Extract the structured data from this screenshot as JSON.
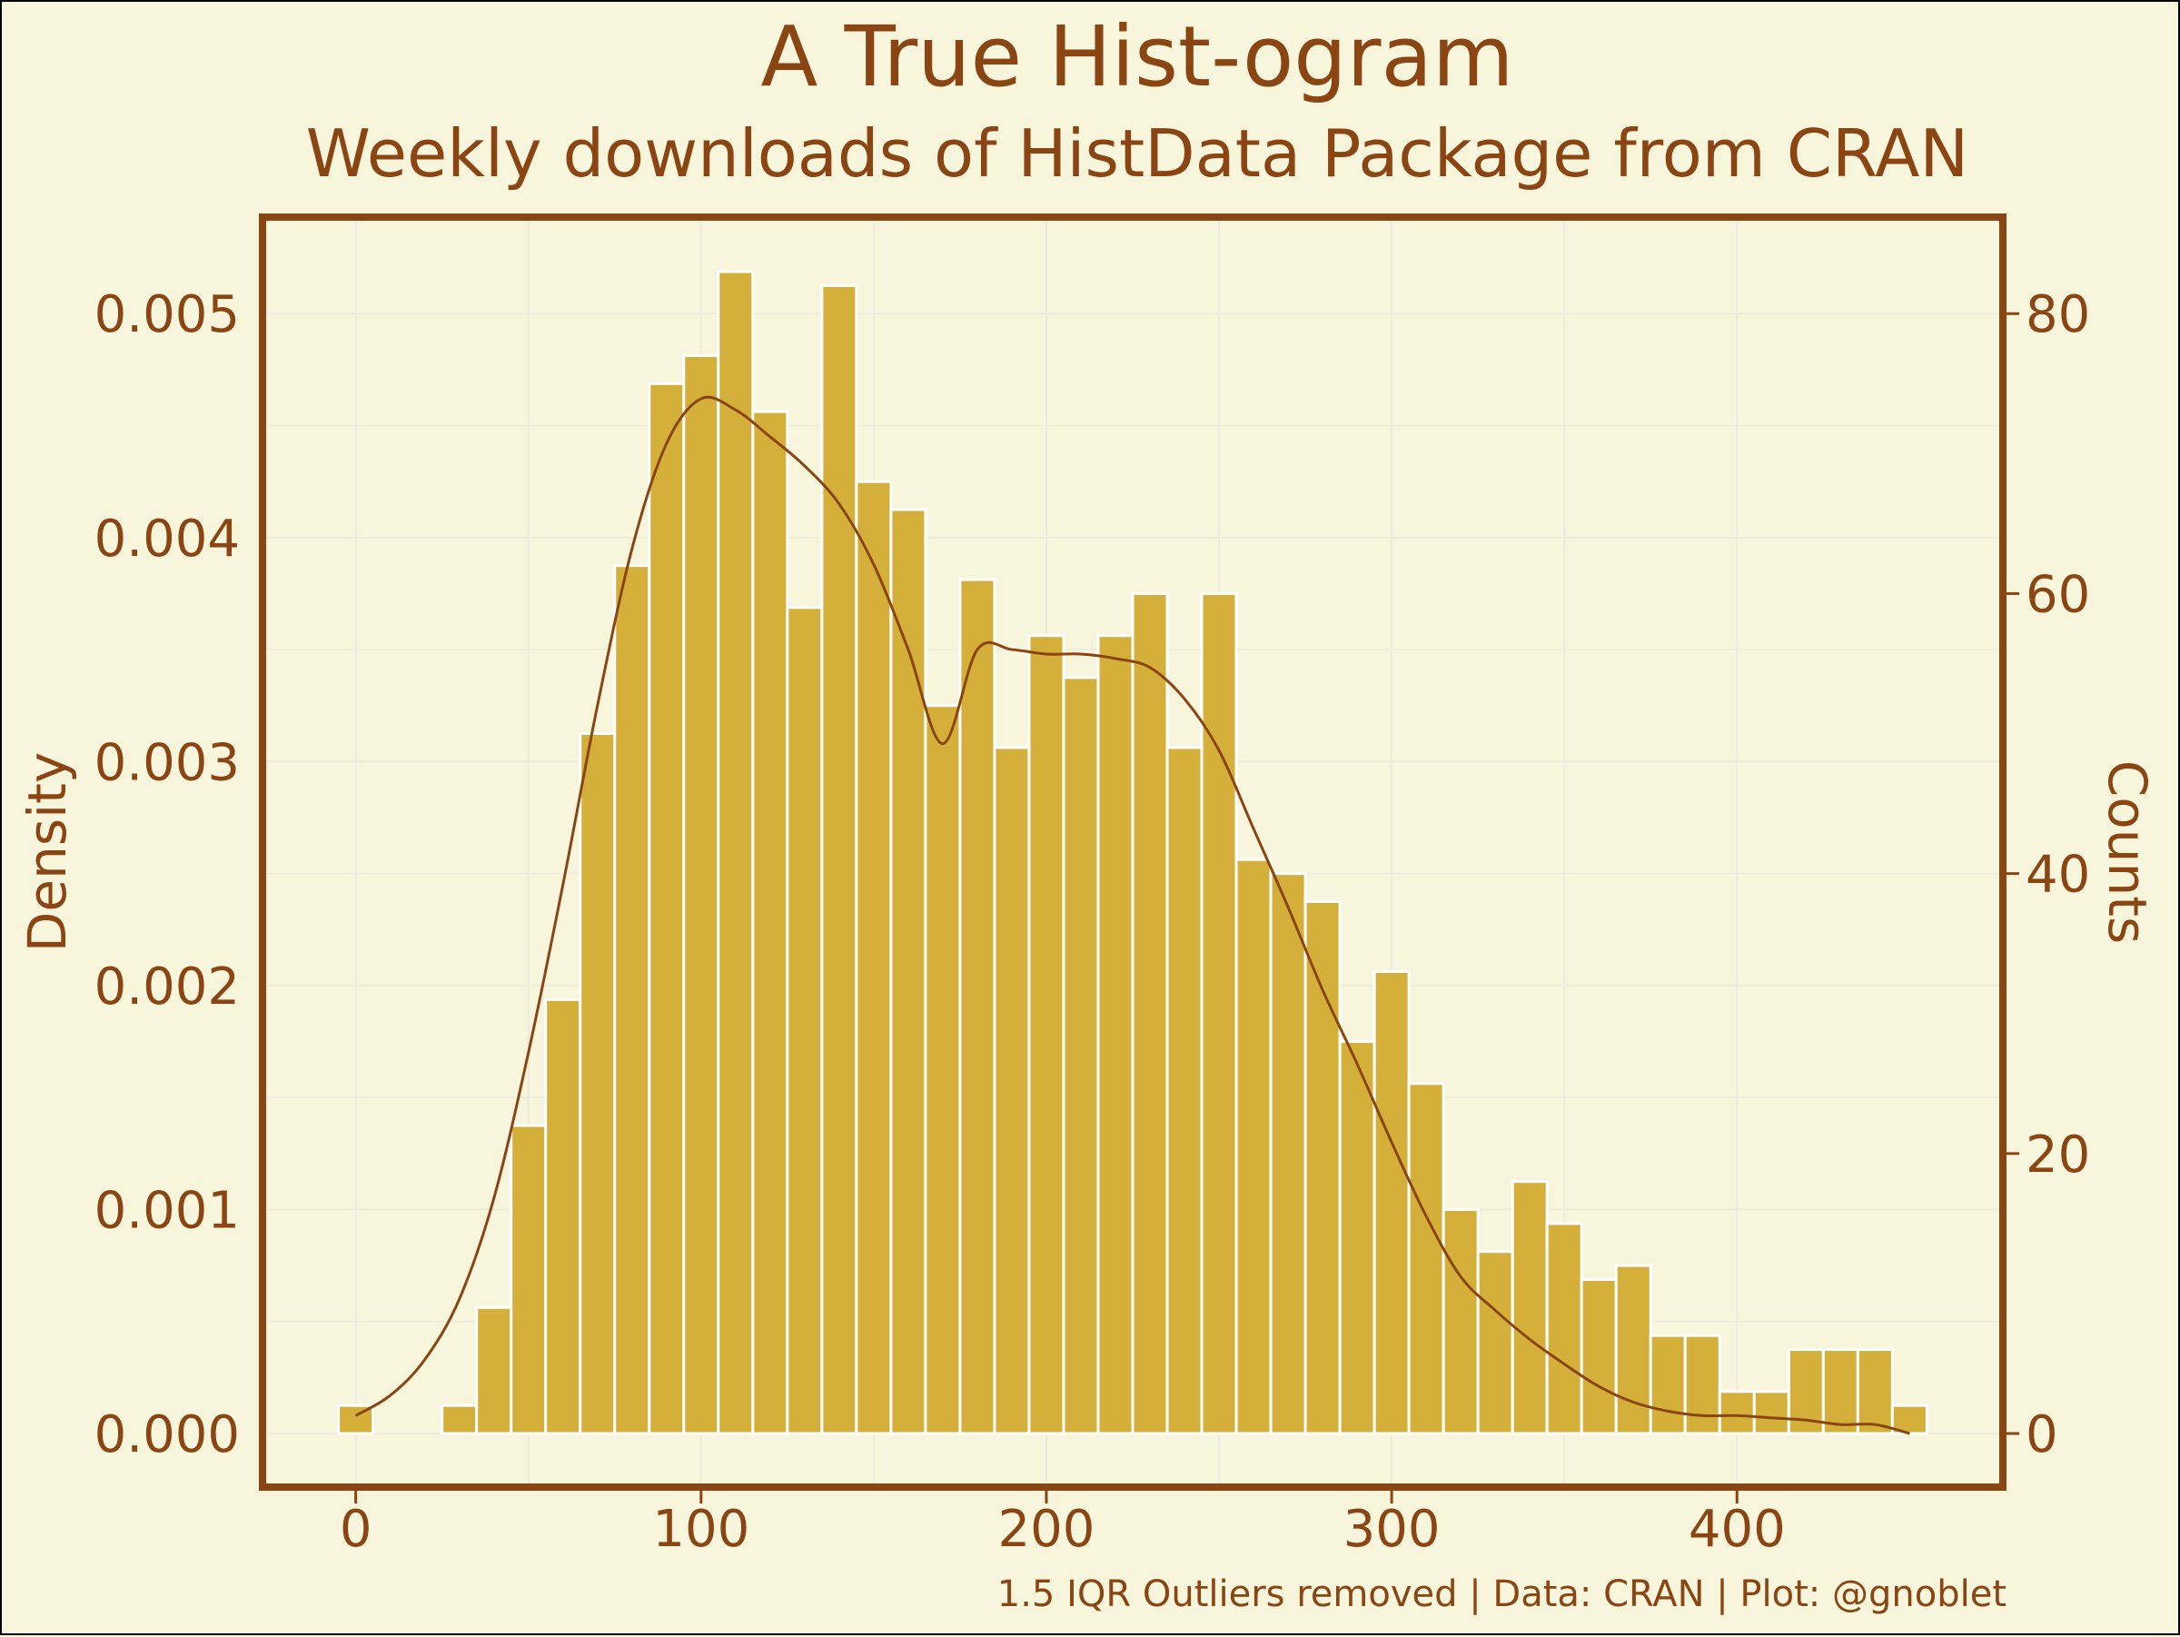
{
  "chart_data": {
    "type": "bar",
    "title": "A True Hist-ogram",
    "subtitle": "Weekly downloads of HistData Package from CRAN",
    "ylabel": "Density",
    "y2label": "Counts",
    "xlabel": "",
    "caption": "1.5 IQR Outliers removed | Data: CRAN | Plot: @gnoblet",
    "xlim": [
      -27,
      477
    ],
    "ylim": [
      0,
      83.5
    ],
    "y_density_to_count_factor": 16000,
    "x_ticks": [
      0,
      100,
      200,
      300,
      400
    ],
    "x_tick_labels": [
      "0",
      "100",
      "200",
      "300",
      "400"
    ],
    "y_left_ticks": [
      0.0,
      0.001,
      0.002,
      0.003,
      0.004,
      0.005
    ],
    "y_left_tick_labels": [
      "0.000",
      "0.001",
      "0.002",
      "0.003",
      "0.004",
      "0.005"
    ],
    "y_right_ticks": [
      0,
      20,
      40,
      60,
      80
    ],
    "y_right_tick_labels": [
      "0",
      "20",
      "40",
      "60",
      "80"
    ],
    "bin_width": 10,
    "bin_centers": [
      0,
      10,
      20,
      30,
      40,
      50,
      60,
      70,
      80,
      90,
      100,
      110,
      120,
      130,
      140,
      150,
      160,
      170,
      180,
      190,
      200,
      210,
      220,
      230,
      240,
      250,
      260,
      270,
      280,
      290,
      300,
      310,
      320,
      330,
      340,
      350,
      360,
      370,
      380,
      390,
      400,
      410,
      420,
      430,
      440,
      450
    ],
    "counts": [
      2,
      0,
      0,
      2,
      9,
      22,
      31,
      50,
      62,
      75,
      77,
      83,
      73,
      59,
      82,
      68,
      66,
      52,
      61,
      49,
      57,
      54,
      57,
      60,
      49,
      60,
      41,
      40,
      38,
      28,
      33,
      25,
      16,
      13,
      18,
      15,
      11,
      12,
      7,
      7,
      3,
      3,
      6,
      6,
      6,
      2
    ],
    "density_curve": {
      "x": [
        0,
        10,
        20,
        30,
        40,
        50,
        60,
        70,
        80,
        90,
        100,
        110,
        120,
        130,
        140,
        150,
        160,
        170,
        180,
        190,
        200,
        210,
        220,
        230,
        240,
        250,
        260,
        270,
        280,
        290,
        300,
        310,
        320,
        330,
        340,
        350,
        360,
        370,
        380,
        390,
        400,
        410,
        420,
        430,
        440,
        450
      ],
      "y": [
        8e-05,
        0.00017,
        0.00033,
        0.0006,
        0.00105,
        0.0017,
        0.00245,
        0.00325,
        0.00395,
        0.00442,
        0.00462,
        0.00457,
        0.00445,
        0.00432,
        0.00415,
        0.00388,
        0.0035,
        0.00308,
        0.0035,
        0.0035,
        0.00348,
        0.00348,
        0.00346,
        0.00342,
        0.00328,
        0.00305,
        0.0027,
        0.00235,
        0.00198,
        0.00165,
        0.0013,
        0.00097,
        0.0007,
        0.00055,
        0.00042,
        0.00031,
        0.00021,
        0.00014,
        0.0001,
        8e-05,
        8e-05,
        7e-05,
        6e-05,
        4e-05,
        4e-05,
        0.0
      ]
    },
    "grid": true,
    "colors": {
      "background": "#f7f6dc",
      "bars": "#d4b03a",
      "bar_edge": "#ffffff",
      "curve": "#8b4513",
      "text": "#8b4513",
      "panel_border": "#8b4513",
      "grid": "#ecebdc"
    }
  }
}
